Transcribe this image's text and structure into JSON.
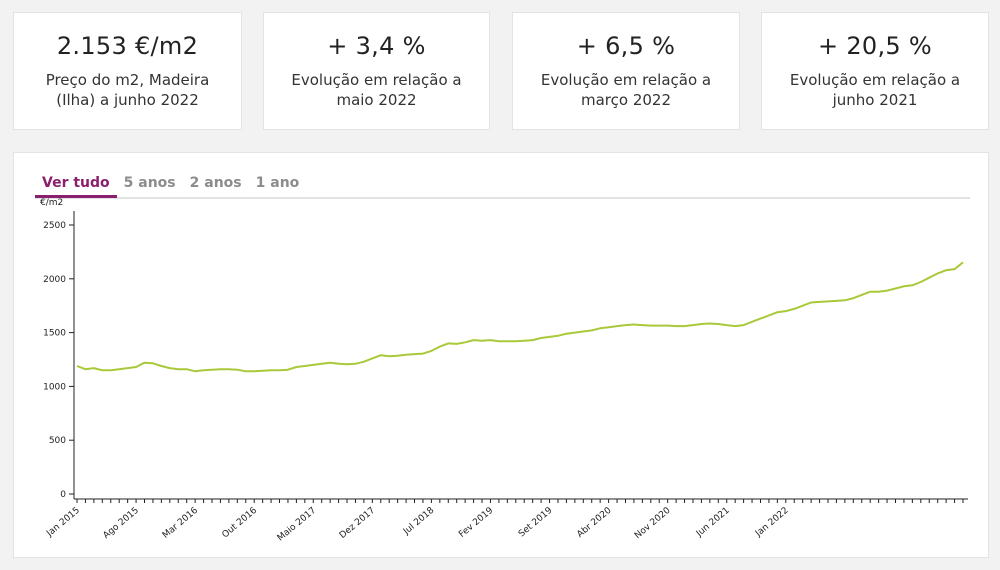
{
  "stats": [
    {
      "value": "2.153 €/m2",
      "label": "Preço do m2, Madeira (Ilha) a junho 2022"
    },
    {
      "value": "+ 3,4 %",
      "label": "Evolução em relação a maio 2022"
    },
    {
      "value": "+ 6,5 %",
      "label": "Evolução em relação a março 2022"
    },
    {
      "value": "+ 20,5 %",
      "label": "Evolução em relação a junho 2021"
    }
  ],
  "tabs": [
    {
      "label": "Ver tudo",
      "active": true
    },
    {
      "label": "5 anos",
      "active": false
    },
    {
      "label": "2 anos",
      "active": false
    },
    {
      "label": "1 ano",
      "active": false
    }
  ],
  "colors": {
    "accent": "#8a1f6e",
    "line": "#a8c93a"
  },
  "chart_data": {
    "type": "line",
    "ylabel": "€/m2",
    "ylim": [
      0,
      2500
    ],
    "yticks": [
      0,
      500,
      1000,
      1500,
      2000,
      2500
    ],
    "x_start": "Jan 2015",
    "x_end": "Jun 2022",
    "xtick_labels": [
      "Jan 2015",
      "Ago 2015",
      "Mar 2016",
      "Out 2016",
      "Maio 2017",
      "Dez 2017",
      "Jul 2018",
      "Fev 2019",
      "Set 2019",
      "Abr 2020",
      "Nov 2020",
      "Jun 2021",
      "Jan 2022"
    ],
    "grid": false,
    "series": [
      {
        "values": [
          1190,
          1160,
          1170,
          1150,
          1150,
          1160,
          1170,
          1180,
          1220,
          1215,
          1190,
          1170,
          1160,
          1160,
          1140,
          1150,
          1155,
          1160,
          1160,
          1155,
          1140,
          1140,
          1145,
          1150,
          1150,
          1155,
          1180,
          1190,
          1200,
          1210,
          1220,
          1210,
          1205,
          1210,
          1230,
          1260,
          1290,
          1280,
          1285,
          1295,
          1300,
          1305,
          1330,
          1370,
          1400,
          1395,
          1410,
          1430,
          1425,
          1430,
          1420,
          1420,
          1420,
          1425,
          1430,
          1450,
          1460,
          1470,
          1490,
          1500,
          1510,
          1520,
          1540,
          1550,
          1560,
          1570,
          1575,
          1570,
          1565,
          1565,
          1565,
          1560,
          1560,
          1570,
          1580,
          1585,
          1580,
          1570,
          1560,
          1570,
          1600,
          1630,
          1660,
          1690,
          1700,
          1720,
          1750,
          1780,
          1785,
          1790,
          1795,
          1800,
          1820,
          1850,
          1880,
          1880,
          1890,
          1910,
          1930,
          1940,
          1970,
          2010,
          2050,
          2080,
          2090,
          2153
        ]
      }
    ]
  }
}
